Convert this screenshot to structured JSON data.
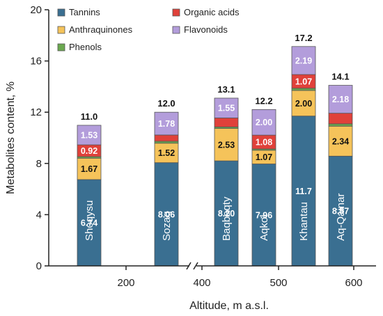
{
  "chart_data": {
    "type": "bar",
    "stacked": true,
    "xlabel": "Altitude, m a.s.l.",
    "ylabel": "Metabolites content, %",
    "ylim": [
      0,
      20
    ],
    "yticks": [
      0,
      4,
      8,
      12,
      16,
      20
    ],
    "xticks": [
      "200",
      "400",
      "500",
      "600"
    ],
    "axis_break": true,
    "legend_position": "top-left",
    "categories": [
      "Shoqysu",
      "Sozaq",
      "Baqbaqty",
      "Aqkol",
      "Khantau",
      "Aq-Qainar"
    ],
    "totals": [
      "11.0",
      "12.0",
      "13.1",
      "12.2",
      "17.2",
      "14.1"
    ],
    "series": [
      {
        "name": "Tannins",
        "color": "#3a6f91",
        "label_color": "#ffffff",
        "values": [
          6.74,
          8.06,
          8.2,
          7.96,
          11.7,
          8.57
        ],
        "labels": [
          "6.74",
          "8.06",
          "8.20",
          "7.96",
          "11.7",
          "8.57"
        ]
      },
      {
        "name": "Anthraquinones",
        "color": "#f5c35a",
        "label_color": "#111111",
        "values": [
          1.67,
          1.52,
          2.53,
          1.07,
          2.0,
          2.34
        ],
        "labels": [
          "1.67",
          "1.52",
          "2.53",
          "1.07",
          "2.00",
          "2.34"
        ]
      },
      {
        "name": "Phenols",
        "color": "#6aa84f",
        "label_color": "#111111",
        "values": [
          0.12,
          0.15,
          0.12,
          0.1,
          0.17,
          0.18
        ],
        "labels": [
          "",
          "",
          "",
          "",
          "",
          ""
        ]
      },
      {
        "name": "Organic acids",
        "color": "#e0413a",
        "label_color": "#ffffff",
        "values": [
          0.92,
          0.49,
          0.7,
          1.08,
          1.07,
          0.83
        ],
        "labels": [
          "0.92",
          "",
          "",
          "1.08",
          "1.07",
          ""
        ]
      },
      {
        "name": "Flavonoids",
        "color": "#b39ddb",
        "label_color": "#ffffff",
        "values": [
          1.53,
          1.78,
          1.55,
          2.0,
          2.19,
          2.18
        ],
        "labels": [
          "1.53",
          "1.78",
          "1.55",
          "2.00",
          "2.19",
          "2.18"
        ]
      }
    ],
    "legend_order": [
      "Tannins",
      "Organic acids",
      "Anthraquinones",
      "Flavonoids",
      "Phenols"
    ]
  }
}
